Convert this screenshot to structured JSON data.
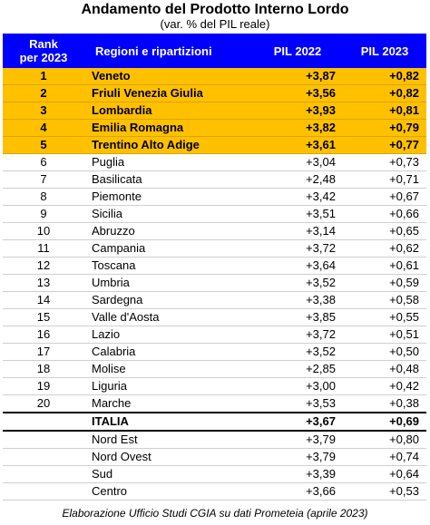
{
  "title": "Andamento del Prodotto Interno Lordo",
  "subtitle": "(var. % del PIL reale)",
  "headers": {
    "rank": "Rank per 2023",
    "region": "Regioni e ripartizioni",
    "pil2022": "PIL 2022",
    "pil2023": "PIL 2023"
  },
  "rows": [
    {
      "rank": "1",
      "region": "Veneto",
      "pil2022": "+3,87",
      "pil2023": "+0,82"
    },
    {
      "rank": "2",
      "region": "Friuli Venezia Giulia",
      "pil2022": "+3,56",
      "pil2023": "+0,82"
    },
    {
      "rank": "3",
      "region": "Lombardia",
      "pil2022": "+3,93",
      "pil2023": "+0,81"
    },
    {
      "rank": "4",
      "region": "Emilia Romagna",
      "pil2022": "+3,82",
      "pil2023": "+0,79"
    },
    {
      "rank": "5",
      "region": "Trentino Alto Adige",
      "pil2022": "+3,61",
      "pil2023": "+0,77"
    },
    {
      "rank": "6",
      "region": "Puglia",
      "pil2022": "+3,04",
      "pil2023": "+0,73"
    },
    {
      "rank": "7",
      "region": "Basilicata",
      "pil2022": "+2,48",
      "pil2023": "+0,71"
    },
    {
      "rank": "8",
      "region": "Piemonte",
      "pil2022": "+3,42",
      "pil2023": "+0,67"
    },
    {
      "rank": "9",
      "region": "Sicilia",
      "pil2022": "+3,51",
      "pil2023": "+0,66"
    },
    {
      "rank": "10",
      "region": "Abruzzo",
      "pil2022": "+3,14",
      "pil2023": "+0,65"
    },
    {
      "rank": "11",
      "region": "Campania",
      "pil2022": "+3,72",
      "pil2023": "+0,62"
    },
    {
      "rank": "12",
      "region": "Toscana",
      "pil2022": "+3,64",
      "pil2023": "+0,61"
    },
    {
      "rank": "13",
      "region": "Umbria",
      "pil2022": "+3,52",
      "pil2023": "+0,59"
    },
    {
      "rank": "14",
      "region": "Sardegna",
      "pil2022": "+3,38",
      "pil2023": "+0,58"
    },
    {
      "rank": "15",
      "region": "Valle d'Aosta",
      "pil2022": "+3,85",
      "pil2023": "+0,55"
    },
    {
      "rank": "16",
      "region": "Lazio",
      "pil2022": "+3,72",
      "pil2023": "+0,51"
    },
    {
      "rank": "17",
      "region": "Calabria",
      "pil2022": "+3,52",
      "pil2023": "+0,50"
    },
    {
      "rank": "18",
      "region": "Molise",
      "pil2022": "+2,85",
      "pil2023": "+0,48"
    },
    {
      "rank": "19",
      "region": "Liguria",
      "pil2022": "+3,00",
      "pil2023": "+0,42"
    },
    {
      "rank": "20",
      "region": "Marche",
      "pil2022": "+3,53",
      "pil2023": "+0,38"
    }
  ],
  "italia": {
    "region": "ITALIA",
    "pil2022": "+3,67",
    "pil2023": "+0,69"
  },
  "areas": [
    {
      "region": "Nord Est",
      "pil2022": "+3,79",
      "pil2023": "+0,80"
    },
    {
      "region": "Nord Ovest",
      "pil2022": "+3,79",
      "pil2023": "+0,74"
    },
    {
      "region": "Sud",
      "pil2022": "+3,39",
      "pil2023": "+0,64"
    },
    {
      "region": "Centro",
      "pil2022": "+3,66",
      "pil2023": "+0,53"
    }
  ],
  "footer": "Elaborazione Ufficio Studi CGIA su dati Prometeia (aprile 2023)",
  "colors": {
    "header_bg": "#0000FF",
    "top5_bg": "#FFC000"
  }
}
